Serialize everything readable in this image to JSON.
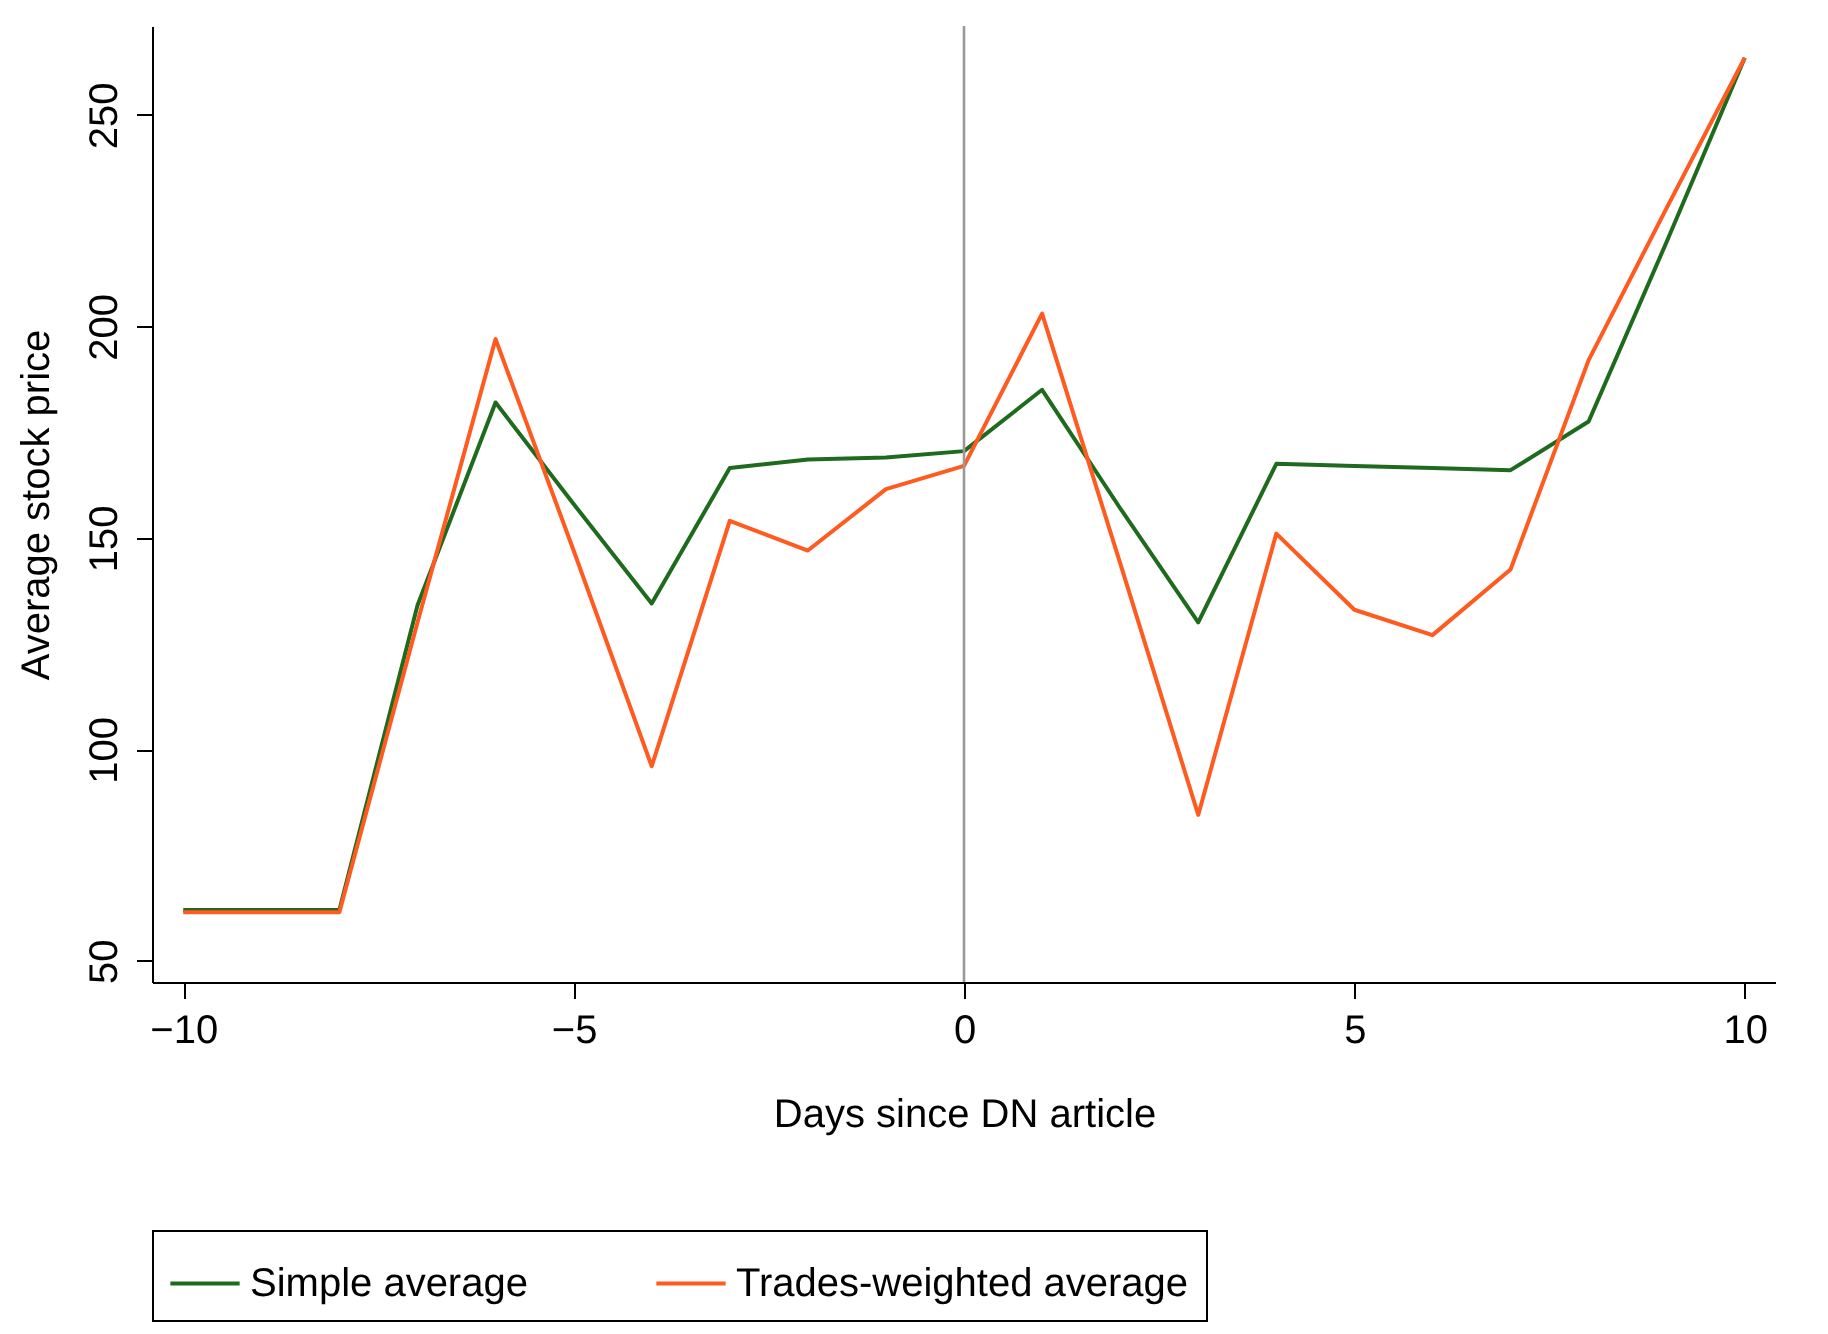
{
  "chart_data": {
    "type": "line",
    "xlabel": "Days since DN article",
    "ylabel": "Average stock price",
    "x": [
      -10,
      -9,
      -8,
      -7,
      -6,
      -5,
      -4,
      -3,
      -2,
      -1,
      0,
      1,
      2,
      3,
      4,
      5,
      6,
      7,
      8,
      9,
      10
    ],
    "series": [
      {
        "name": "Simple average",
        "color": "#1e6b1e",
        "values": [
          62,
          62,
          62,
          134,
          182,
          158,
          134.5,
          166.5,
          168.5,
          169,
          170.5,
          185,
          157,
          130,
          167.5,
          167,
          166.5,
          166,
          177.5,
          220,
          263.5
        ]
      },
      {
        "name": "Trades-weighted average",
        "color": "#ff5a1f",
        "values": [
          61.5,
          61.5,
          61.5,
          130,
          197,
          147,
          96,
          154,
          147,
          161.5,
          167,
          203,
          144,
          84.5,
          151,
          133,
          127,
          142.5,
          192,
          228,
          263.5
        ]
      }
    ],
    "xlim": [
      -10.4,
      10.4
    ],
    "xticks": [
      -10,
      -5,
      0,
      5,
      10
    ],
    "ylim": [
      45,
      271
    ],
    "yticks": [
      50,
      100,
      150,
      200,
      250
    ],
    "ref_lines": [
      {
        "axis": "x",
        "value": 0,
        "color": "#999999"
      }
    ],
    "grid": false,
    "legend": "bottom",
    "marker": "none",
    "line_style": "solid"
  }
}
